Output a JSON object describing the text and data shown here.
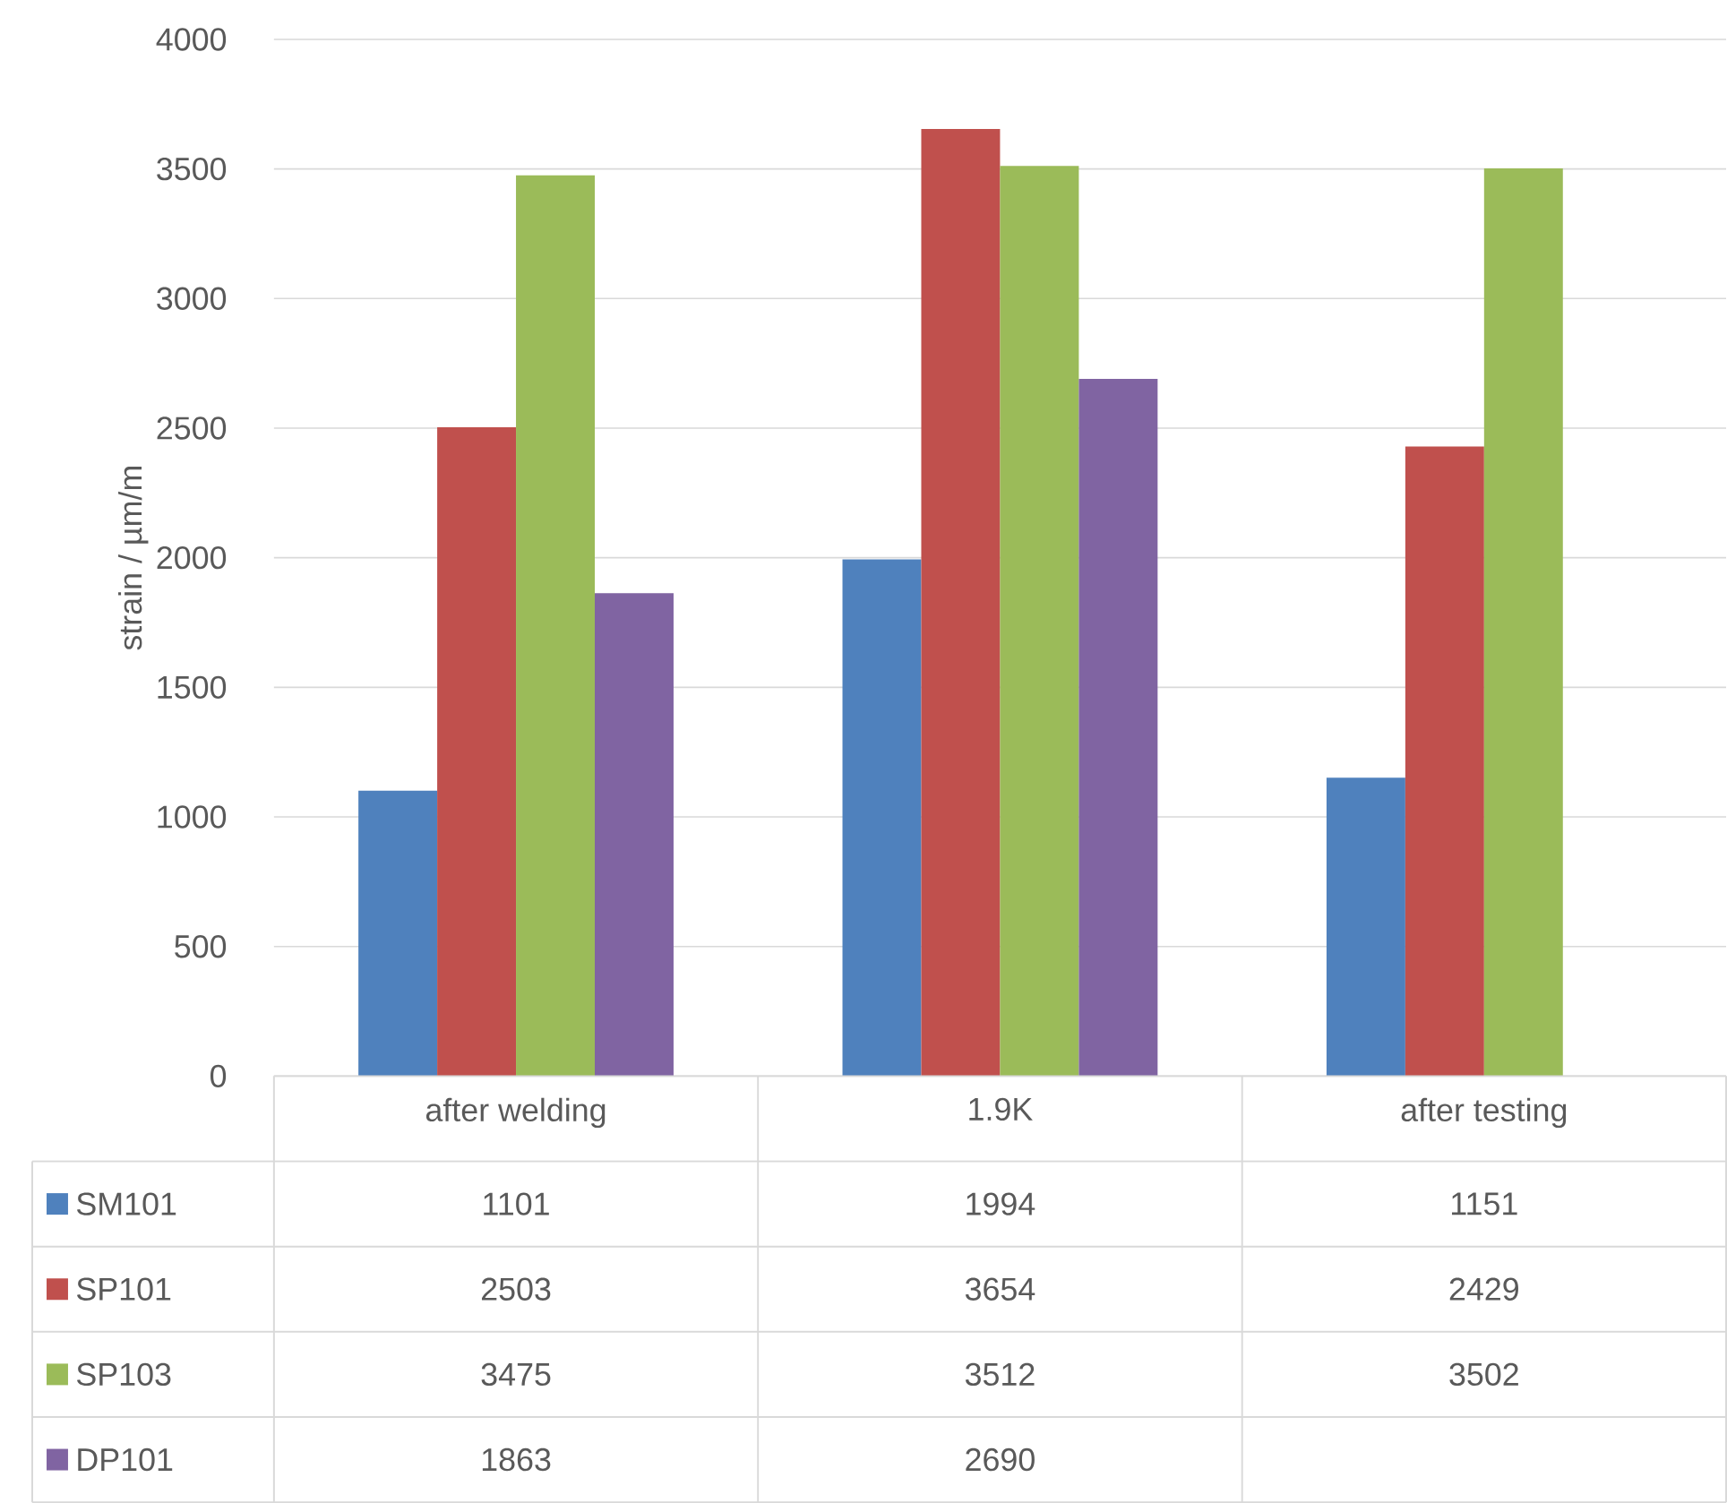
{
  "chart_data": {
    "type": "bar",
    "ylabel": "strain / µm/m",
    "categories": [
      "after welding",
      "1.9K",
      "after testing"
    ],
    "series": [
      {
        "name": "SM101",
        "color": "#4f81bd",
        "values": [
          1101,
          1994,
          1151
        ]
      },
      {
        "name": "SP101",
        "color": "#c0504d",
        "values": [
          2503,
          3654,
          2429
        ]
      },
      {
        "name": "SP103",
        "color": "#9bbb59",
        "values": [
          3475,
          3512,
          3502
        ]
      },
      {
        "name": "DP101",
        "color": "#8064a2",
        "values": [
          1863,
          2690,
          null
        ]
      }
    ],
    "ylim": [
      0,
      4000
    ],
    "yticks": [
      0,
      500,
      1000,
      1500,
      2000,
      2500,
      3000,
      3500,
      4000
    ],
    "grid": "y",
    "legend": "bottom",
    "data_labels": true
  }
}
